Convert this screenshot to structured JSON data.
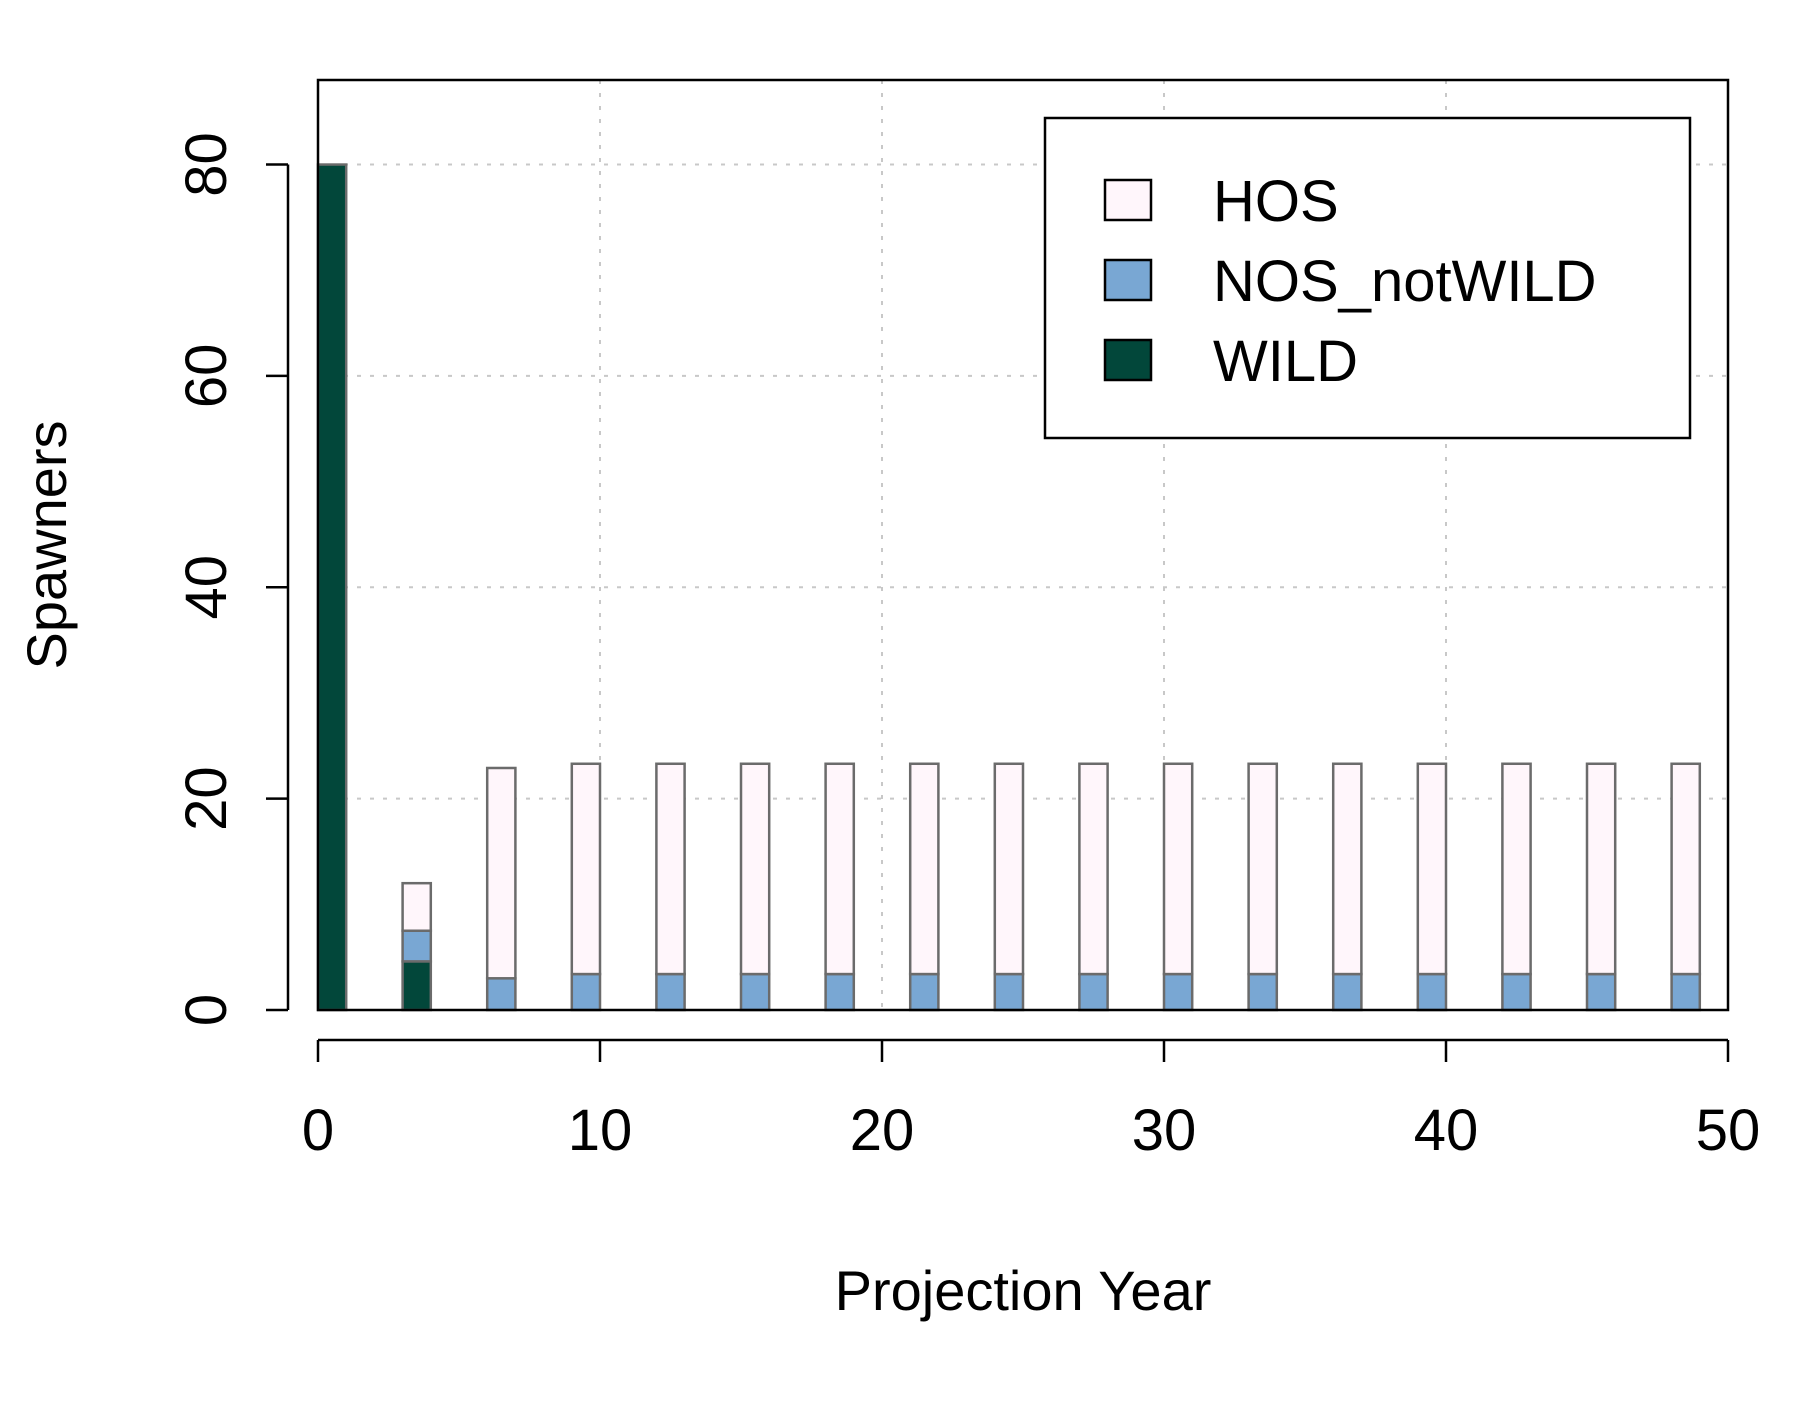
{
  "chart_data": {
    "type": "bar",
    "stacked": true,
    "xlabel": "Projection Year",
    "ylabel": "Spawners",
    "xlim": [
      0,
      50
    ],
    "ylim": [
      0,
      88
    ],
    "xticks": [
      0,
      10,
      20,
      30,
      40,
      50
    ],
    "yticks": [
      0,
      20,
      40,
      60,
      80
    ],
    "grid": true,
    "legend_position": "top-right",
    "x": [
      0.5,
      3.5,
      6.5,
      9.5,
      12.5,
      15.5,
      18.5,
      21.5,
      24.5,
      27.5,
      30.5,
      33.5,
      36.5,
      39.5,
      42.5,
      45.5,
      48.5
    ],
    "series": [
      {
        "name": "WILD",
        "color": "#02473a",
        "values": [
          80,
          4.6,
          0,
          0,
          0,
          0,
          0,
          0,
          0,
          0,
          0,
          0,
          0,
          0,
          0,
          0,
          0
        ]
      },
      {
        "name": "NOS_notWILD",
        "color": "#79a7d3",
        "values": [
          0,
          2.9,
          3.0,
          3.4,
          3.4,
          3.4,
          3.4,
          3.4,
          3.4,
          3.4,
          3.4,
          3.4,
          3.4,
          3.4,
          3.4,
          3.4,
          3.4
        ]
      },
      {
        "name": "HOS",
        "color": "#fff6fb",
        "values": [
          0,
          4.5,
          19.9,
          19.9,
          19.9,
          19.9,
          19.9,
          19.9,
          19.9,
          19.9,
          19.9,
          19.9,
          19.9,
          19.9,
          19.9,
          19.9,
          19.9
        ]
      }
    ],
    "legend_order": [
      "HOS",
      "NOS_notWILD",
      "WILD"
    ],
    "bar_width": 1,
    "bar_border_color": "#6b6b6b",
    "grid_color": "#c8c8c8"
  }
}
